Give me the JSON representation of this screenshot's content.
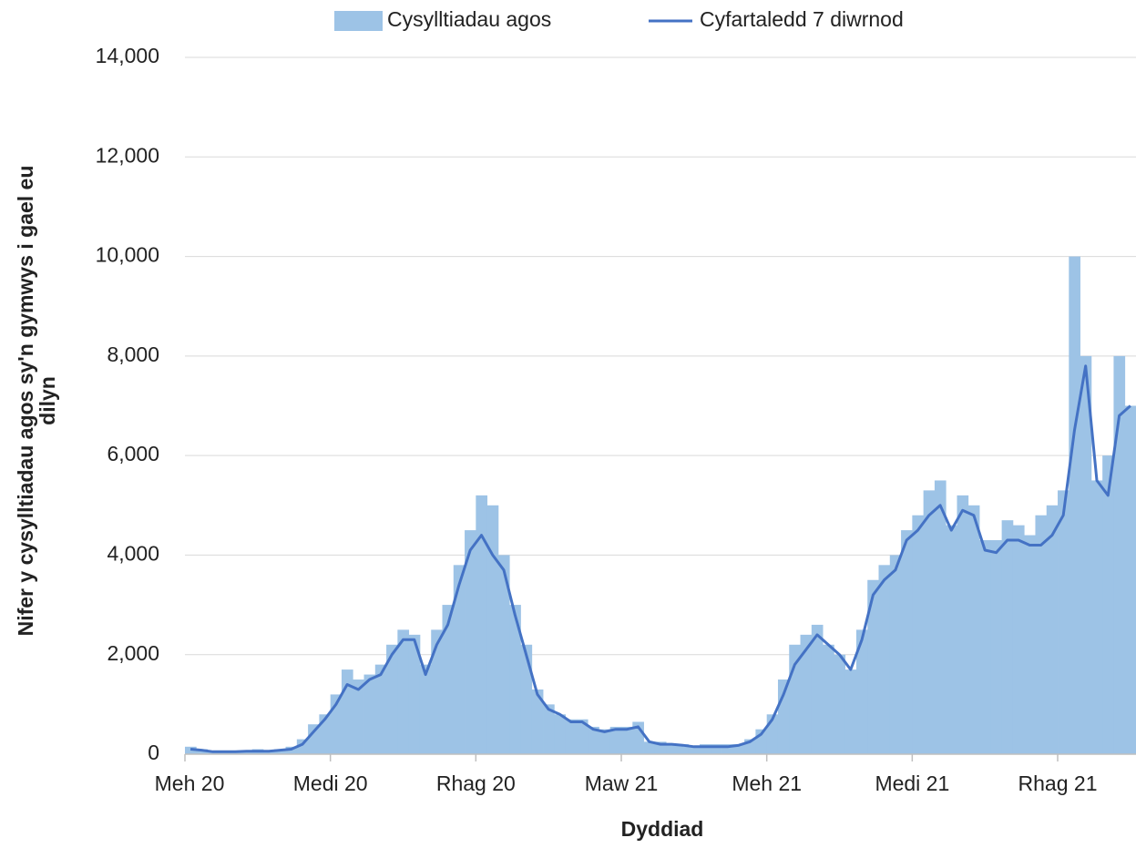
{
  "chart_data": {
    "type": "bar-line",
    "x_label": "Dyddiad",
    "y_label": [
      "Nifer y cysylltiadau agos sy'n gymwys i gael eu",
      "dilyn"
    ],
    "categories": [
      "Meh 20",
      null,
      null,
      null,
      null,
      null,
      null,
      null,
      null,
      null,
      null,
      null,
      null,
      "Medi 20",
      null,
      null,
      null,
      null,
      null,
      null,
      null,
      null,
      null,
      null,
      null,
      null,
      "Rhag 20",
      null,
      null,
      null,
      null,
      null,
      null,
      null,
      null,
      null,
      null,
      null,
      null,
      "Maw 21",
      null,
      null,
      null,
      null,
      null,
      null,
      null,
      null,
      null,
      null,
      null,
      null,
      "Meh 21",
      null,
      null,
      null,
      null,
      null,
      null,
      null,
      null,
      null,
      null,
      null,
      null,
      "Medi 21",
      null,
      null,
      null,
      null,
      null,
      null,
      null,
      null,
      null,
      null,
      null,
      null,
      "Rhag 21",
      null,
      null,
      null,
      null,
      null,
      null
    ],
    "series": [
      {
        "name": "Cysylltiadau agos",
        "color": "#9dc3e6",
        "kind": "bar",
        "values": [
          150,
          100,
          50,
          50,
          60,
          80,
          100,
          80,
          100,
          150,
          300,
          600,
          800,
          1200,
          1700,
          1500,
          1600,
          1800,
          2200,
          2500,
          2400,
          1800,
          2500,
          3000,
          3800,
          4500,
          5200,
          5000,
          4000,
          3000,
          2200,
          1300,
          1000,
          800,
          700,
          700,
          550,
          500,
          550,
          550,
          650,
          250,
          250,
          200,
          200,
          150,
          200,
          200,
          200,
          200,
          300,
          500,
          800,
          1500,
          2200,
          2400,
          2600,
          2200,
          2000,
          1700,
          2500,
          3500,
          3800,
          4000,
          4500,
          4800,
          5300,
          5500,
          4600,
          5200,
          5000,
          4300,
          4300,
          4700,
          4600,
          4400,
          4800,
          5000,
          5300,
          10000,
          8000,
          5500,
          6000,
          8000,
          7000
        ]
      },
      {
        "name": "Cyfartaledd 7 diwrnod",
        "color": "#4472c4",
        "kind": "line",
        "values": [
          100,
          80,
          50,
          50,
          50,
          60,
          60,
          60,
          80,
          100,
          200,
          450,
          700,
          1000,
          1400,
          1300,
          1500,
          1600,
          2000,
          2300,
          2300,
          1600,
          2200,
          2600,
          3400,
          4100,
          4400,
          4000,
          3700,
          2800,
          2000,
          1200,
          900,
          800,
          650,
          650,
          500,
          450,
          500,
          500,
          550,
          250,
          200,
          200,
          180,
          150,
          150,
          150,
          150,
          180,
          250,
          400,
          700,
          1200,
          1800,
          2100,
          2400,
          2200,
          2000,
          1700,
          2300,
          3200,
          3500,
          3700,
          4300,
          4500,
          4800,
          5000,
          4500,
          4900,
          4800,
          4100,
          4050,
          4300,
          4300,
          4200,
          4200,
          4400,
          4800,
          6500,
          7800,
          5500,
          5200,
          6800,
          7000
        ]
      }
    ],
    "ylim": [
      0,
      14000
    ],
    "yticks": [
      0,
      {
        "value": 2000,
        "label": "2,000"
      },
      {
        "value": 4000,
        "label": "4,000"
      },
      {
        "value": 6000,
        "label": "6,000"
      },
      {
        "value": 8000,
        "label": "8,000"
      },
      {
        "value": 10000,
        "label": "10,000"
      },
      {
        "value": 12000,
        "label": "12,000"
      },
      {
        "value": 14000,
        "label": "14,000"
      }
    ],
    "grid": true,
    "legend": "top"
  }
}
